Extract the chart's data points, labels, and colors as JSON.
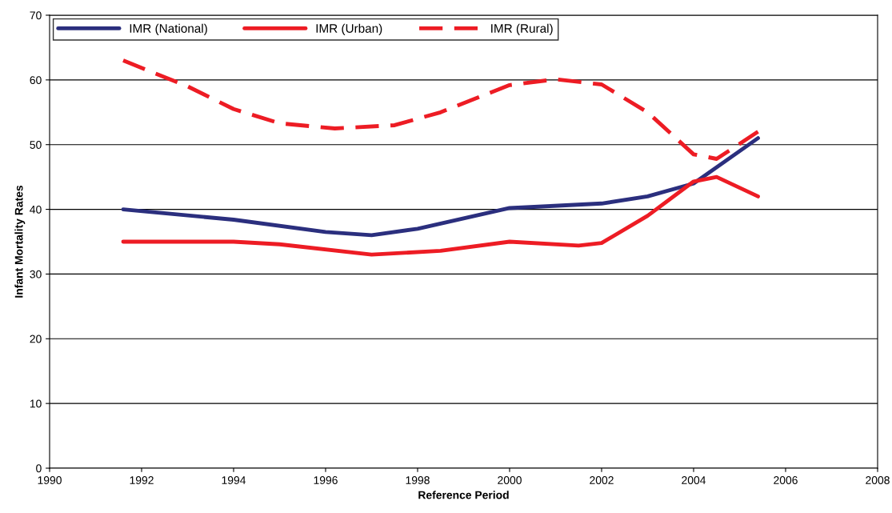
{
  "chart_data": {
    "type": "line",
    "xlabel": "Reference Period",
    "ylabel": "Infant Mortality Rates",
    "xlim": [
      1990,
      2008
    ],
    "xticks": [
      1990,
      1992,
      1994,
      1996,
      1998,
      2000,
      2002,
      2004,
      2006,
      2008
    ],
    "ylim": [
      0,
      70
    ],
    "yticks": [
      0,
      10,
      20,
      30,
      40,
      50,
      60,
      70
    ],
    "grid": "y",
    "legend": "top left",
    "marker": "none",
    "series": [
      {
        "name": "IMR (National)",
        "color": "#2b2f7e",
        "line_style": "solid",
        "x": [
          1991.6,
          1994,
          1996,
          1997,
          1998,
          2000,
          2002,
          2003,
          2004,
          2005.4
        ],
        "values": [
          40,
          38.4,
          36.5,
          36,
          37,
          40.2,
          40.9,
          42,
          44,
          51
        ]
      },
      {
        "name": "IMR (Urban)",
        "color": "#ed1c24",
        "line_style": "solid",
        "x": [
          1991.6,
          1994,
          1995,
          1997,
          1998.5,
          2000,
          2001.5,
          2002,
          2003,
          2004,
          2004.5,
          2005.4
        ],
        "values": [
          35,
          35,
          34.6,
          33,
          33.6,
          35,
          34.4,
          34.8,
          39,
          44.3,
          45,
          42
        ]
      },
      {
        "name": "IMR (Rural)",
        "color": "#ed1c24",
        "line_style": "dashed",
        "x": [
          1991.6,
          1993,
          1994,
          1995,
          1996.2,
          1997.5,
          1998.5,
          2000,
          2001,
          2002,
          2003,
          2004,
          2004.5,
          2005.4
        ],
        "values": [
          63,
          59,
          55.5,
          53.3,
          52.5,
          53,
          55,
          59.2,
          60.1,
          59.3,
          55,
          48.5,
          47.8,
          52
        ]
      }
    ]
  }
}
